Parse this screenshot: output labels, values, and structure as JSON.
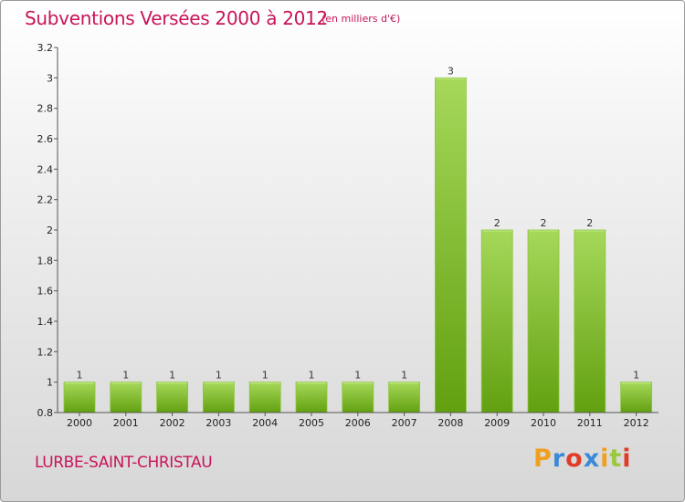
{
  "header": {
    "title": "Subventions Versées 2000 à 2012",
    "unit_note": "(en milliers d'€)"
  },
  "footer": {
    "commune": "LURBE-SAINT-CHRISTAU",
    "logo_text": "Proxiti"
  },
  "colors": {
    "title": "#c8145a",
    "bar_light": "#a6d85a",
    "bar_dark": "#62a010",
    "logo": [
      "#f0a020",
      "#3a8ad8",
      "#e03c28",
      "#3a8ad8",
      "#f0a020",
      "#9bc83c",
      "#e03c28"
    ]
  },
  "chart_data": {
    "type": "bar",
    "categories": [
      "2000",
      "2001",
      "2002",
      "2003",
      "2004",
      "2005",
      "2006",
      "2007",
      "2008",
      "2009",
      "2010",
      "2011",
      "2012"
    ],
    "values": [
      1,
      1,
      1,
      1,
      1,
      1,
      1,
      1,
      3,
      2,
      2,
      2,
      1
    ],
    "data_labels": [
      "1",
      "1",
      "1",
      "1",
      "1",
      "1",
      "1",
      "1",
      "3",
      "2",
      "2",
      "2",
      "1"
    ],
    "y_ticks": [
      "0.8",
      "1",
      "1.2",
      "1.4",
      "1.6",
      "1.8",
      "2",
      "2.2",
      "2.4",
      "2.6",
      "2.8",
      "3",
      "3.2"
    ],
    "ylim": [
      0.8,
      3.2
    ],
    "grid": false,
    "legend": "none"
  }
}
